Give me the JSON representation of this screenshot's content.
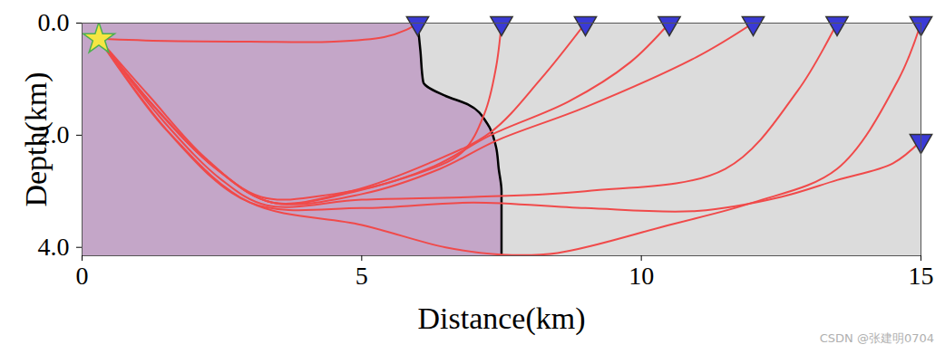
{
  "chart_data": {
    "type": "raypath",
    "xlabel": "Distance(km)",
    "ylabel": "Depth(km)",
    "xlim": [
      0,
      15
    ],
    "ylim": [
      0,
      4.15
    ],
    "xticks": [
      0,
      5,
      10,
      15
    ],
    "yticks": [
      0,
      2,
      4
    ],
    "watermark": "CSDN @张建明0704",
    "source": {
      "x": 0.3,
      "y": 0.28,
      "color": "#f5e642",
      "marker": "star"
    },
    "receivers": {
      "x": [
        6,
        7.5,
        9,
        10.5,
        12,
        13.5,
        15,
        15
      ],
      "y": [
        0,
        0,
        0,
        0,
        0,
        0,
        0,
        2.1
      ],
      "color": "#3a3ad6",
      "marker": "triangle-down"
    },
    "boundary": {
      "x": [
        6,
        6.05,
        6.1,
        6.5,
        6.9,
        7.25,
        7.4,
        7.45,
        7.5,
        7.5,
        7.5
      ],
      "y": [
        0,
        0.5,
        1.05,
        1.3,
        1.45,
        1.8,
        2.2,
        2.6,
        3.0,
        3.6,
        4.15
      ],
      "color": "#000000"
    },
    "wavefield_color": "#b07ab8",
    "rays": {
      "color": "#f04a4a",
      "paths": [
        {
          "x": [
            0.3,
            1.5,
            3,
            4.5,
            5.4,
            5.8,
            6
          ],
          "y": [
            0.28,
            0.32,
            0.33,
            0.33,
            0.25,
            0.12,
            0
          ]
        },
        {
          "x": [
            0.3,
            1.2,
            2.2,
            3.2,
            4.5,
            5.8,
            6.8,
            7.2,
            7.4,
            7.5
          ],
          "y": [
            0.28,
            1.3,
            2.4,
            3.1,
            3.05,
            2.75,
            2.3,
            1.6,
            0.8,
            0
          ]
        },
        {
          "x": [
            0.3,
            1.3,
            2.4,
            3.4,
            4.8,
            6.2,
            7.3,
            8.2,
            9
          ],
          "y": [
            0.28,
            1.5,
            2.6,
            3.2,
            3.0,
            2.5,
            1.95,
            1.0,
            0
          ]
        },
        {
          "x": [
            0.3,
            1.3,
            2.4,
            3.4,
            4.9,
            6.3,
            7.3,
            8.7,
            9.8,
            10.5
          ],
          "y": [
            0.28,
            1.5,
            2.6,
            3.2,
            3.0,
            2.55,
            2.0,
            1.4,
            0.7,
            0
          ]
        },
        {
          "x": [
            0.3,
            1.3,
            2.4,
            3.4,
            5,
            6.4,
            7.4,
            9,
            11,
            12
          ],
          "y": [
            0.28,
            1.5,
            2.6,
            3.2,
            3.05,
            2.6,
            2.1,
            1.5,
            0.6,
            0
          ]
        },
        {
          "x": [
            0.3,
            1.5,
            2.5,
            3.3,
            5,
            7,
            9,
            11.5,
            12.8,
            13.5
          ],
          "y": [
            0.28,
            1.8,
            2.8,
            3.25,
            3.15,
            3.1,
            3.0,
            2.6,
            1.2,
            0
          ]
        },
        {
          "x": [
            0.3,
            1.6,
            3,
            5,
            6.5,
            7.5,
            8.5,
            10.5,
            12,
            13.5,
            14.6,
            15
          ],
          "y": [
            0.28,
            2.0,
            3.2,
            3.6,
            4.0,
            4.13,
            4.1,
            3.6,
            3.2,
            2.6,
            1.0,
            0
          ]
        },
        {
          "x": [
            0.3,
            1.5,
            3,
            5,
            7,
            9,
            11,
            12.5,
            13.5,
            14.5,
            15
          ],
          "y": [
            0.28,
            1.9,
            3.2,
            3.3,
            3.2,
            3.3,
            3.35,
            3.1,
            2.8,
            2.5,
            2.1
          ]
        }
      ]
    }
  }
}
